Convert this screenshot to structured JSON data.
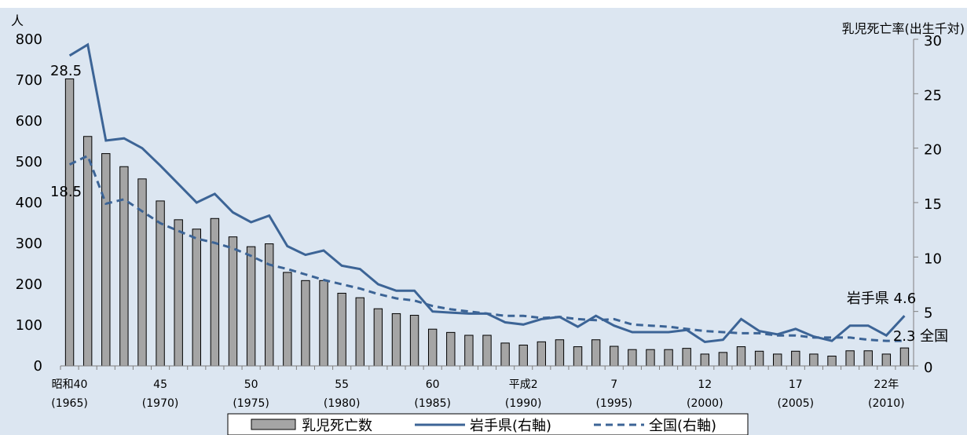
{
  "chart_data": {
    "type": "bar+line",
    "left_axis": {
      "unit_label": "人",
      "ylim": [
        0,
        800
      ],
      "ticks": [
        0,
        100,
        200,
        300,
        400,
        500,
        600,
        700,
        800
      ]
    },
    "right_axis": {
      "unit_label": "乳児死亡率(出生千対)",
      "ylim": [
        0,
        30
      ],
      "ticks": [
        0,
        5,
        10,
        15,
        20,
        25,
        30
      ]
    },
    "x_category_labels": [
      {
        "index": 0,
        "line1": "昭和40",
        "line2": "(1965)"
      },
      {
        "index": 5,
        "line1": "45",
        "line2": "(1970)"
      },
      {
        "index": 10,
        "line1": "50",
        "line2": "(1975)"
      },
      {
        "index": 15,
        "line1": "55",
        "line2": "(1980)"
      },
      {
        "index": 20,
        "line1": "60",
        "line2": "(1985)"
      },
      {
        "index": 25,
        "line1": "平成2",
        "line2": "(1990)"
      },
      {
        "index": 30,
        "line1": "7",
        "line2": "(1995)"
      },
      {
        "index": 35,
        "line1": "12",
        "line2": "(2000)"
      },
      {
        "index": 40,
        "line1": "17",
        "line2": "(2005)"
      },
      {
        "index": 45,
        "line1": "22年",
        "line2": "(2010)"
      }
    ],
    "years": [
      1965,
      1966,
      1967,
      1968,
      1969,
      1970,
      1971,
      1972,
      1973,
      1974,
      1975,
      1976,
      1977,
      1978,
      1979,
      1980,
      1981,
      1982,
      1983,
      1984,
      1985,
      1986,
      1987,
      1988,
      1989,
      1990,
      1991,
      1992,
      1993,
      1994,
      1995,
      1996,
      1997,
      1998,
      1999,
      2000,
      2001,
      2002,
      2003,
      2004,
      2005,
      2006,
      2007,
      2008,
      2009,
      2010,
      2011
    ],
    "series": [
      {
        "name": "乳児死亡数",
        "kind": "bar",
        "axis": "left",
        "values": [
          703,
          562,
          520,
          488,
          458,
          404,
          358,
          335,
          361,
          316,
          292,
          299,
          229,
          209,
          209,
          178,
          167,
          140,
          128,
          124,
          90,
          82,
          75,
          75,
          56,
          51,
          59,
          64,
          47,
          64,
          48,
          40,
          40,
          40,
          43,
          29,
          33,
          47,
          36,
          29,
          36,
          29,
          24,
          37,
          37,
          29,
          44
        ]
      },
      {
        "name": "岩手県(右軸)",
        "kind": "line",
        "axis": "right",
        "values": [
          28.5,
          29.5,
          20.7,
          20.9,
          20.0,
          18.4,
          16.7,
          15.0,
          15.8,
          14.1,
          13.2,
          13.8,
          11.0,
          10.2,
          10.6,
          9.2,
          8.9,
          7.5,
          6.9,
          6.9,
          5.0,
          4.9,
          4.8,
          4.8,
          4.0,
          3.8,
          4.3,
          4.5,
          3.6,
          4.6,
          3.7,
          3.1,
          3.1,
          3.1,
          3.3,
          2.2,
          2.4,
          4.3,
          3.2,
          2.9,
          3.4,
          2.7,
          2.3,
          3.7,
          3.7,
          2.8,
          4.6
        ]
      },
      {
        "name": "全国(右軸)",
        "kind": "dashed-line",
        "axis": "right",
        "values": [
          18.5,
          19.3,
          14.9,
          15.3,
          14.2,
          13.1,
          12.4,
          11.7,
          11.3,
          10.8,
          10.1,
          9.3,
          8.9,
          8.4,
          7.9,
          7.5,
          7.1,
          6.6,
          6.2,
          6.0,
          5.5,
          5.2,
          5.0,
          4.8,
          4.6,
          4.6,
          4.4,
          4.5,
          4.3,
          4.2,
          4.3,
          3.8,
          3.7,
          3.6,
          3.4,
          3.2,
          3.1,
          3.0,
          3.0,
          2.8,
          2.8,
          2.6,
          2.6,
          2.6,
          2.4,
          2.3,
          2.3
        ]
      }
    ],
    "annotations": {
      "iwate_start": "28.5",
      "national_start": "18.5",
      "iwate_end": "岩手県 4.6",
      "national_end": "2.3 全国"
    },
    "legend": {
      "placement": "bottom",
      "items": [
        "乳児死亡数",
        "岩手県(右軸)",
        "全国(右軸)"
      ]
    },
    "colors": {
      "background": "#dce6f1",
      "bar_fill": "#a5a5a5",
      "bar_stroke": "#000000",
      "iwate_line": "#3c6496",
      "national_line": "#3c6496"
    },
    "grid": false
  }
}
